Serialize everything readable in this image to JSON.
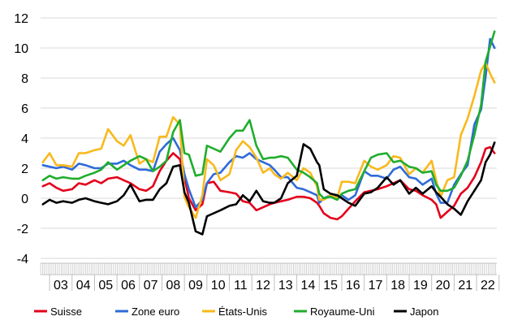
{
  "chart_data": {
    "type": "line",
    "title": "",
    "xlabel": "",
    "ylabel": "",
    "ylim": [
      -4,
      12
    ],
    "xlim": [
      2002.6,
      2022.9
    ],
    "yticks": [
      -4,
      -2,
      0,
      2,
      4,
      6,
      8,
      10,
      12
    ],
    "xtick_labels": [
      "03",
      "04",
      "05",
      "06",
      "07",
      "08",
      "09",
      "10",
      "11",
      "12",
      "13",
      "14",
      "15",
      "16",
      "17",
      "18",
      "19",
      "20",
      "21",
      "22"
    ],
    "grid": "horizontal",
    "legend_position": "bottom",
    "series": [
      {
        "name": "Suisse",
        "color": "#e3001b",
        "x": [
          2002.7,
          2003.0,
          2003.3,
          2003.6,
          2004.0,
          2004.3,
          2004.6,
          2005.0,
          2005.3,
          2005.6,
          2006.0,
          2006.3,
          2006.6,
          2007.0,
          2007.3,
          2007.6,
          2007.9,
          2008.2,
          2008.5,
          2008.8,
          2009.0,
          2009.2,
          2009.5,
          2009.8,
          2010.0,
          2010.3,
          2010.6,
          2011.0,
          2011.3,
          2011.6,
          2011.9,
          2012.2,
          2012.5,
          2012.8,
          2013.0,
          2013.3,
          2013.6,
          2014.0,
          2014.3,
          2014.6,
          2014.9,
          2015.0,
          2015.2,
          2015.5,
          2015.8,
          2016.0,
          2016.3,
          2016.6,
          2017.0,
          2017.3,
          2017.6,
          2018.0,
          2018.3,
          2018.6,
          2019.0,
          2019.3,
          2019.6,
          2020.0,
          2020.2,
          2020.4,
          2020.7,
          2021.0,
          2021.3,
          2021.6,
          2021.9,
          2022.2,
          2022.4,
          2022.6,
          2022.8
        ],
        "y": [
          0.8,
          1.0,
          0.7,
          0.5,
          0.6,
          1.0,
          0.9,
          1.2,
          1.0,
          1.3,
          1.4,
          1.2,
          1.0,
          0.6,
          0.5,
          0.8,
          1.8,
          2.5,
          3.0,
          2.6,
          1.4,
          0.0,
          -0.8,
          -0.4,
          1.0,
          1.1,
          0.5,
          0.4,
          0.3,
          -0.2,
          -0.3,
          -0.8,
          -0.6,
          -0.4,
          -0.3,
          -0.2,
          -0.1,
          0.1,
          0.1,
          0.0,
          -0.3,
          -0.5,
          -1.0,
          -1.3,
          -1.4,
          -1.2,
          -0.7,
          -0.2,
          0.4,
          0.5,
          0.6,
          0.8,
          1.0,
          1.2,
          0.6,
          0.5,
          0.2,
          -0.1,
          -0.4,
          -1.3,
          -0.9,
          -0.5,
          0.3,
          0.7,
          1.4,
          2.4,
          3.3,
          3.4,
          3.0
        ]
      },
      {
        "name": "Zone euro",
        "color": "#2e6bd9",
        "x": [
          2002.7,
          2003.0,
          2003.3,
          2003.6,
          2004.0,
          2004.3,
          2004.6,
          2005.0,
          2005.3,
          2005.6,
          2006.0,
          2006.3,
          2006.6,
          2007.0,
          2007.3,
          2007.6,
          2007.9,
          2008.2,
          2008.5,
          2008.8,
          2009.0,
          2009.2,
          2009.5,
          2009.8,
          2010.0,
          2010.3,
          2010.6,
          2011.0,
          2011.3,
          2011.6,
          2011.9,
          2012.2,
          2012.5,
          2012.8,
          2013.0,
          2013.3,
          2013.6,
          2014.0,
          2014.3,
          2014.6,
          2014.9,
          2015.0,
          2015.2,
          2015.5,
          2015.8,
          2016.0,
          2016.3,
          2016.6,
          2017.0,
          2017.3,
          2017.6,
          2018.0,
          2018.3,
          2018.6,
          2019.0,
          2019.3,
          2019.6,
          2020.0,
          2020.2,
          2020.4,
          2020.7,
          2021.0,
          2021.3,
          2021.6,
          2021.9,
          2022.2,
          2022.4,
          2022.6,
          2022.8
        ],
        "y": [
          2.2,
          2.1,
          2.0,
          2.1,
          1.9,
          2.3,
          2.2,
          2.0,
          2.0,
          2.3,
          2.3,
          2.5,
          2.2,
          1.9,
          1.9,
          1.8,
          3.1,
          3.6,
          4.0,
          3.2,
          1.6,
          0.6,
          -0.6,
          -0.1,
          1.0,
          1.6,
          1.7,
          2.4,
          2.8,
          2.7,
          3.0,
          2.6,
          2.4,
          2.2,
          1.9,
          1.4,
          1.4,
          0.7,
          0.6,
          0.4,
          0.2,
          -0.3,
          0.0,
          0.2,
          0.1,
          0.2,
          -0.1,
          0.2,
          1.8,
          1.5,
          1.5,
          1.3,
          1.9,
          2.1,
          1.4,
          1.3,
          0.9,
          1.3,
          0.3,
          -0.3,
          -0.3,
          0.9,
          1.6,
          2.2,
          4.9,
          5.9,
          8.1,
          10.6,
          10.0
        ]
      },
      {
        "name": "États-Unis",
        "color": "#f9b91c",
        "x": [
          2002.7,
          2003.0,
          2003.3,
          2003.6,
          2004.0,
          2004.3,
          2004.6,
          2005.0,
          2005.3,
          2005.6,
          2006.0,
          2006.3,
          2006.6,
          2007.0,
          2007.3,
          2007.6,
          2007.9,
          2008.2,
          2008.5,
          2008.8,
          2009.0,
          2009.2,
          2009.5,
          2009.8,
          2010.0,
          2010.3,
          2010.6,
          2011.0,
          2011.3,
          2011.6,
          2011.9,
          2012.2,
          2012.5,
          2012.8,
          2013.0,
          2013.3,
          2013.6,
          2014.0,
          2014.3,
          2014.6,
          2014.9,
          2015.0,
          2015.2,
          2015.5,
          2015.8,
          2016.0,
          2016.3,
          2016.6,
          2017.0,
          2017.3,
          2017.6,
          2018.0,
          2018.3,
          2018.6,
          2019.0,
          2019.3,
          2019.6,
          2020.0,
          2020.2,
          2020.4,
          2020.7,
          2021.0,
          2021.3,
          2021.6,
          2021.9,
          2022.2,
          2022.4,
          2022.6,
          2022.8
        ],
        "y": [
          2.4,
          3.0,
          2.2,
          2.2,
          2.1,
          3.0,
          3.0,
          3.2,
          3.3,
          4.6,
          3.8,
          3.5,
          4.2,
          2.3,
          2.6,
          2.4,
          4.1,
          4.1,
          5.4,
          4.9,
          0.1,
          -0.6,
          -1.3,
          0.2,
          2.6,
          2.2,
          1.2,
          1.6,
          3.2,
          3.8,
          3.4,
          2.7,
          1.7,
          2.0,
          1.6,
          1.3,
          1.7,
          1.2,
          2.0,
          1.7,
          0.8,
          -0.1,
          -0.1,
          0.2,
          0.0,
          1.1,
          1.1,
          1.0,
          2.5,
          2.1,
          1.9,
          2.2,
          2.8,
          2.7,
          1.6,
          2.0,
          1.7,
          2.5,
          1.2,
          0.1,
          1.2,
          1.4,
          4.2,
          5.3,
          6.8,
          8.5,
          9.0,
          8.3,
          7.7
        ]
      },
      {
        "name": "Royaume-Uni",
        "color": "#1fad2d",
        "x": [
          2002.7,
          2003.0,
          2003.3,
          2003.6,
          2004.0,
          2004.3,
          2004.6,
          2005.0,
          2005.3,
          2005.6,
          2006.0,
          2006.3,
          2006.6,
          2007.0,
          2007.3,
          2007.6,
          2007.9,
          2008.2,
          2008.5,
          2008.8,
          2009.0,
          2009.2,
          2009.5,
          2009.8,
          2010.0,
          2010.3,
          2010.6,
          2011.0,
          2011.3,
          2011.6,
          2011.9,
          2012.2,
          2012.5,
          2012.8,
          2013.0,
          2013.3,
          2013.6,
          2014.0,
          2014.3,
          2014.6,
          2014.9,
          2015.0,
          2015.2,
          2015.5,
          2015.8,
          2016.0,
          2016.3,
          2016.6,
          2017.0,
          2017.3,
          2017.6,
          2018.0,
          2018.3,
          2018.6,
          2019.0,
          2019.3,
          2019.6,
          2020.0,
          2020.2,
          2020.4,
          2020.7,
          2021.0,
          2021.3,
          2021.6,
          2021.9,
          2022.2,
          2022.4,
          2022.6,
          2022.8
        ],
        "y": [
          1.2,
          1.5,
          1.3,
          1.4,
          1.3,
          1.3,
          1.5,
          1.7,
          1.9,
          2.4,
          1.9,
          2.2,
          2.5,
          2.8,
          2.6,
          1.8,
          2.1,
          2.5,
          4.4,
          5.2,
          3.0,
          2.9,
          1.5,
          1.6,
          3.5,
          3.3,
          3.1,
          4.0,
          4.5,
          4.5,
          5.2,
          3.5,
          2.6,
          2.7,
          2.7,
          2.8,
          2.7,
          1.9,
          1.7,
          1.4,
          1.0,
          0.3,
          0.0,
          0.1,
          -0.1,
          0.3,
          0.5,
          0.6,
          1.8,
          2.7,
          2.9,
          3.0,
          2.4,
          2.5,
          2.1,
          2.0,
          1.7,
          1.8,
          0.9,
          0.5,
          0.5,
          0.7,
          1.5,
          2.5,
          4.2,
          6.2,
          9.1,
          10.1,
          11.1
        ]
      },
      {
        "name": "Japon",
        "color": "#000000",
        "x": [
          2002.7,
          2003.0,
          2003.3,
          2003.6,
          2004.0,
          2004.3,
          2004.6,
          2005.0,
          2005.3,
          2005.6,
          2006.0,
          2006.3,
          2006.6,
          2007.0,
          2007.3,
          2007.6,
          2007.9,
          2008.2,
          2008.5,
          2008.8,
          2009.0,
          2009.2,
          2009.5,
          2009.8,
          2010.0,
          2010.3,
          2010.6,
          2011.0,
          2011.3,
          2011.6,
          2011.9,
          2012.2,
          2012.5,
          2012.8,
          2013.0,
          2013.3,
          2013.6,
          2014.0,
          2014.3,
          2014.6,
          2014.9,
          2015.0,
          2015.2,
          2015.5,
          2015.8,
          2016.0,
          2016.3,
          2016.6,
          2017.0,
          2017.3,
          2017.6,
          2018.0,
          2018.3,
          2018.6,
          2019.0,
          2019.3,
          2019.6,
          2020.0,
          2020.2,
          2020.4,
          2020.7,
          2021.0,
          2021.3,
          2021.6,
          2021.9,
          2022.2,
          2022.4,
          2022.6,
          2022.8
        ],
        "y": [
          -0.4,
          -0.1,
          -0.3,
          -0.2,
          -0.3,
          -0.1,
          0.0,
          -0.2,
          -0.3,
          -0.4,
          -0.2,
          0.2,
          0.9,
          -0.2,
          -0.1,
          -0.1,
          0.6,
          1.0,
          2.1,
          2.2,
          0.4,
          -0.3,
          -2.2,
          -2.4,
          -1.2,
          -1.0,
          -0.8,
          -0.5,
          -0.4,
          0.2,
          -0.2,
          0.5,
          -0.2,
          -0.3,
          -0.3,
          0.0,
          1.0,
          1.5,
          3.6,
          3.3,
          2.4,
          2.2,
          0.6,
          0.3,
          0.2,
          0.0,
          -0.3,
          -0.5,
          0.3,
          0.4,
          0.7,
          1.4,
          0.9,
          1.2,
          0.3,
          0.7,
          0.3,
          0.8,
          0.4,
          0.1,
          -0.4,
          -0.7,
          -1.1,
          -0.2,
          0.5,
          1.2,
          2.4,
          2.9,
          3.7
        ]
      }
    ]
  }
}
